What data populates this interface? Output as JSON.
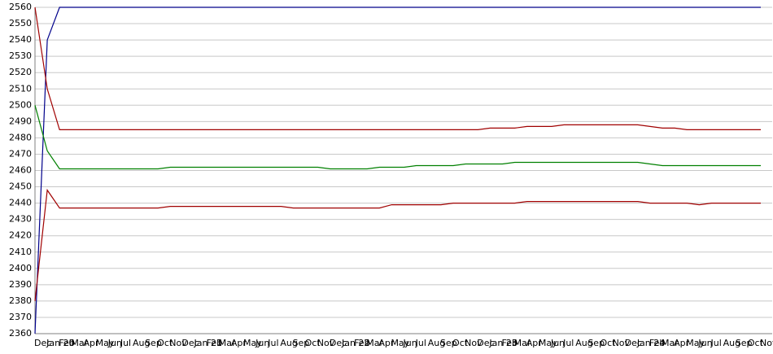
{
  "chart_data": {
    "type": "line",
    "categories": [
      "Dec",
      "Jan 20",
      "Feb",
      "Mar",
      "Apr",
      "May",
      "Jun",
      "Jul",
      "Aug",
      "Sep",
      "Oct",
      "Nov",
      "Dec",
      "Jan 21",
      "Feb",
      "Mar",
      "Apr",
      "May",
      "Jun",
      "Jul",
      "Aug",
      "Sep",
      "Oct",
      "Nov",
      "Dec",
      "Jan 22",
      "Feb",
      "Mar",
      "Apr",
      "May",
      "Jun",
      "Jul",
      "Aug",
      "Sep",
      "Oct",
      "Nov",
      "Dec",
      "Jan 23",
      "Feb",
      "Mar",
      "Apr",
      "May",
      "Jun",
      "Jul",
      "Aug",
      "Sep",
      "Oct",
      "Nov",
      "Dec",
      "Jan 24",
      "Feb",
      "Mar",
      "Apr",
      "May",
      "Jun",
      "Jul",
      "Aug",
      "Sep",
      "Oct",
      "Nov"
    ],
    "series": [
      {
        "color": "#00008b",
        "values": [
          2360,
          2540,
          2560,
          2560,
          2560,
          2560,
          2560,
          2560,
          2560,
          2560,
          2560,
          2560,
          2560,
          2560,
          2560,
          2560,
          2560,
          2560,
          2560,
          2560,
          2560,
          2560,
          2560,
          2560,
          2560,
          2560,
          2560,
          2560,
          2560,
          2560,
          2560,
          2560,
          2560,
          2560,
          2560,
          2560,
          2560,
          2560,
          2560,
          2560,
          2560,
          2560,
          2560,
          2560,
          2560,
          2560,
          2560,
          2560,
          2560,
          2560,
          2560,
          2560,
          2560,
          2560,
          2560,
          2560,
          2560,
          2560,
          2560,
          2560
        ]
      },
      {
        "color": "#a00000",
        "values": [
          2560,
          2510,
          2485,
          2485,
          2485,
          2485,
          2485,
          2485,
          2485,
          2485,
          2485,
          2485,
          2485,
          2485,
          2485,
          2485,
          2485,
          2485,
          2485,
          2485,
          2485,
          2485,
          2485,
          2485,
          2485,
          2485,
          2485,
          2485,
          2485,
          2485,
          2485,
          2485,
          2485,
          2485,
          2485,
          2485,
          2485,
          2486,
          2486,
          2486,
          2487,
          2487,
          2487,
          2488,
          2488,
          2488,
          2488,
          2488,
          2488,
          2488,
          2487,
          2486,
          2486,
          2485,
          2485,
          2485,
          2485,
          2485,
          2485,
          2485
        ]
      },
      {
        "color": "#008000",
        "values": [
          2500,
          2472,
          2461,
          2461,
          2461,
          2461,
          2461,
          2461,
          2461,
          2461,
          2461,
          2462,
          2462,
          2462,
          2462,
          2462,
          2462,
          2462,
          2462,
          2462,
          2462,
          2462,
          2462,
          2462,
          2461,
          2461,
          2461,
          2461,
          2462,
          2462,
          2462,
          2463,
          2463,
          2463,
          2463,
          2464,
          2464,
          2464,
          2464,
          2465,
          2465,
          2465,
          2465,
          2465,
          2465,
          2465,
          2465,
          2465,
          2465,
          2465,
          2464,
          2463,
          2463,
          2463,
          2463,
          2463,
          2463,
          2463,
          2463,
          2463
        ]
      },
      {
        "color": "#a00000",
        "values": [
          2380,
          2448,
          2437,
          2437,
          2437,
          2437,
          2437,
          2437,
          2437,
          2437,
          2437,
          2438,
          2438,
          2438,
          2438,
          2438,
          2438,
          2438,
          2438,
          2438,
          2438,
          2437,
          2437,
          2437,
          2437,
          2437,
          2437,
          2437,
          2437,
          2439,
          2439,
          2439,
          2439,
          2439,
          2440,
          2440,
          2440,
          2440,
          2440,
          2440,
          2441,
          2441,
          2441,
          2441,
          2441,
          2441,
          2441,
          2441,
          2441,
          2441,
          2440,
          2440,
          2440,
          2440,
          2439,
          2440,
          2440,
          2440,
          2440,
          2440
        ]
      }
    ],
    "ylim": [
      2360,
      2560
    ],
    "yticks": [
      2360,
      2370,
      2380,
      2390,
      2400,
      2410,
      2420,
      2430,
      2440,
      2450,
      2460,
      2470,
      2480,
      2490,
      2500,
      2510,
      2520,
      2530,
      2540,
      2550,
      2560
    ],
    "grid": true
  }
}
